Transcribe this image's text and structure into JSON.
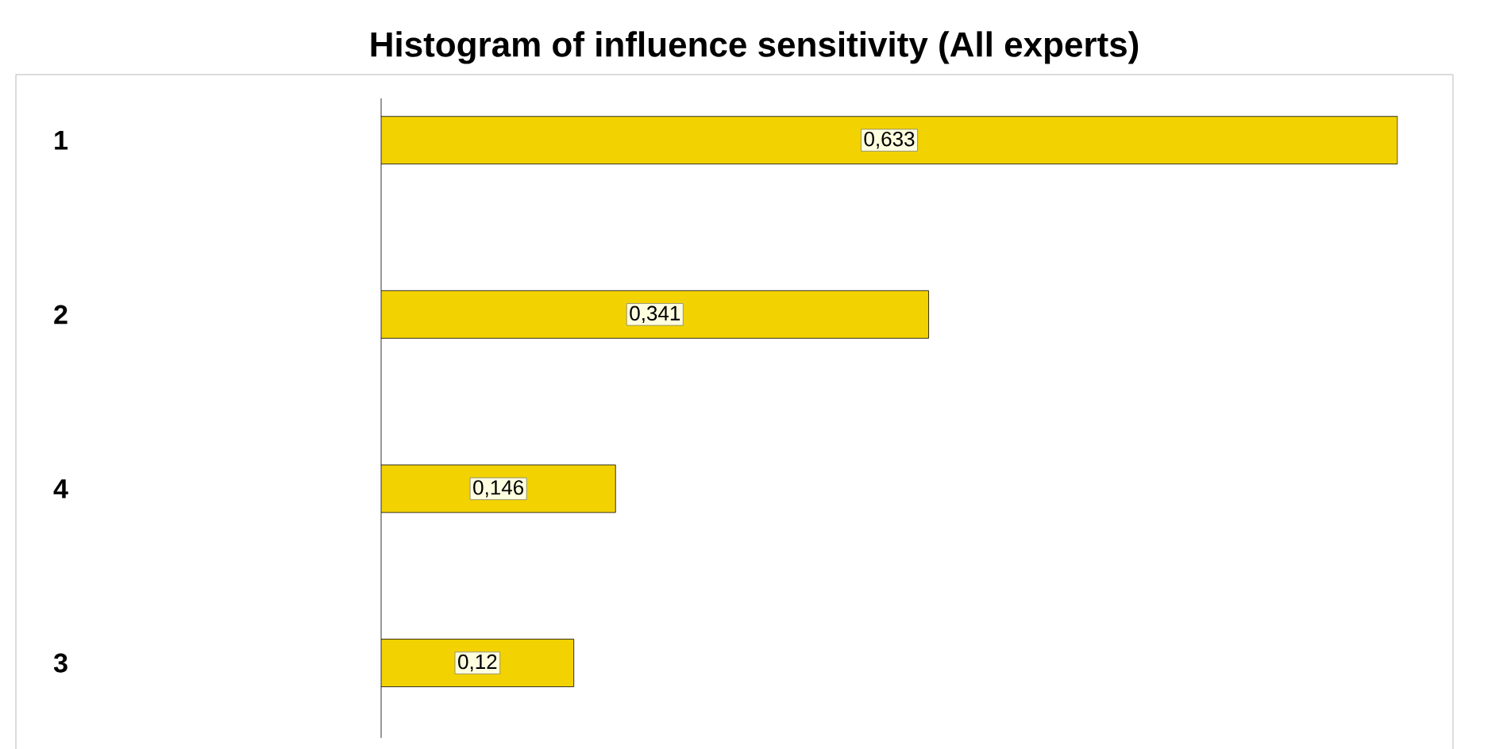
{
  "chart_data": {
    "type": "bar",
    "orientation": "horizontal",
    "title": "Histogram of influence sensitivity (All experts)",
    "categories": [
      "1",
      "2",
      "4",
      "3"
    ],
    "values": [
      0.633,
      0.341,
      0.146,
      0.12
    ],
    "value_labels": [
      "0,633",
      "0,341",
      "0,146",
      "0,12"
    ],
    "color": "#f2d200"
  }
}
